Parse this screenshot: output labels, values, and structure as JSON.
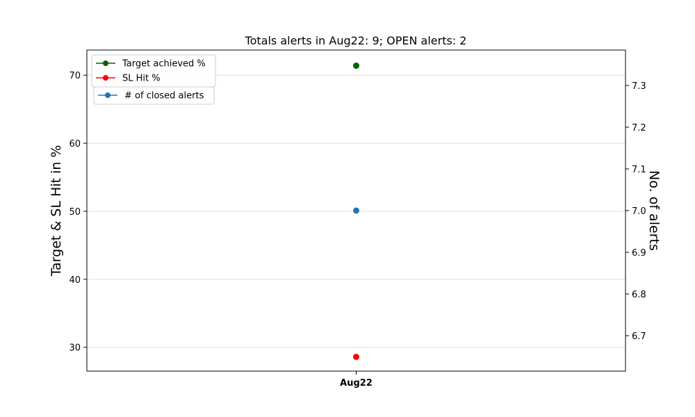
{
  "chart_data": {
    "type": "line",
    "title": "Totals alerts in Aug22: 9; OPEN alerts: 2",
    "categories": [
      "Aug22"
    ],
    "ylabel": "Target & SL Hit in %",
    "y2label": "No. of alerts",
    "ylim": [
      26.5,
      73.7
    ],
    "y2lim": [
      6.615,
      7.385
    ],
    "yticks": [
      "30",
      "40",
      "50",
      "60",
      "70"
    ],
    "y2ticks": [
      "6.7",
      "6.8",
      "6.9",
      "7.0",
      "7.1",
      "7.2",
      "7.3"
    ],
    "grid": "horizontal",
    "series": [
      {
        "name": "Target achieved %",
        "axis": "left",
        "color": "#006400",
        "values": [
          71.4
        ]
      },
      {
        "name": "SL Hit %",
        "axis": "left",
        "color": "#ff0000",
        "values": [
          28.6
        ]
      },
      {
        "name": "# of closed alerts",
        "axis": "right",
        "color": "#1f77b4",
        "values": [
          7
        ]
      }
    ],
    "legends": [
      {
        "placement": "top-left",
        "entries": [
          0,
          1
        ]
      },
      {
        "placement": "top-left",
        "entries": [
          2
        ]
      }
    ]
  }
}
